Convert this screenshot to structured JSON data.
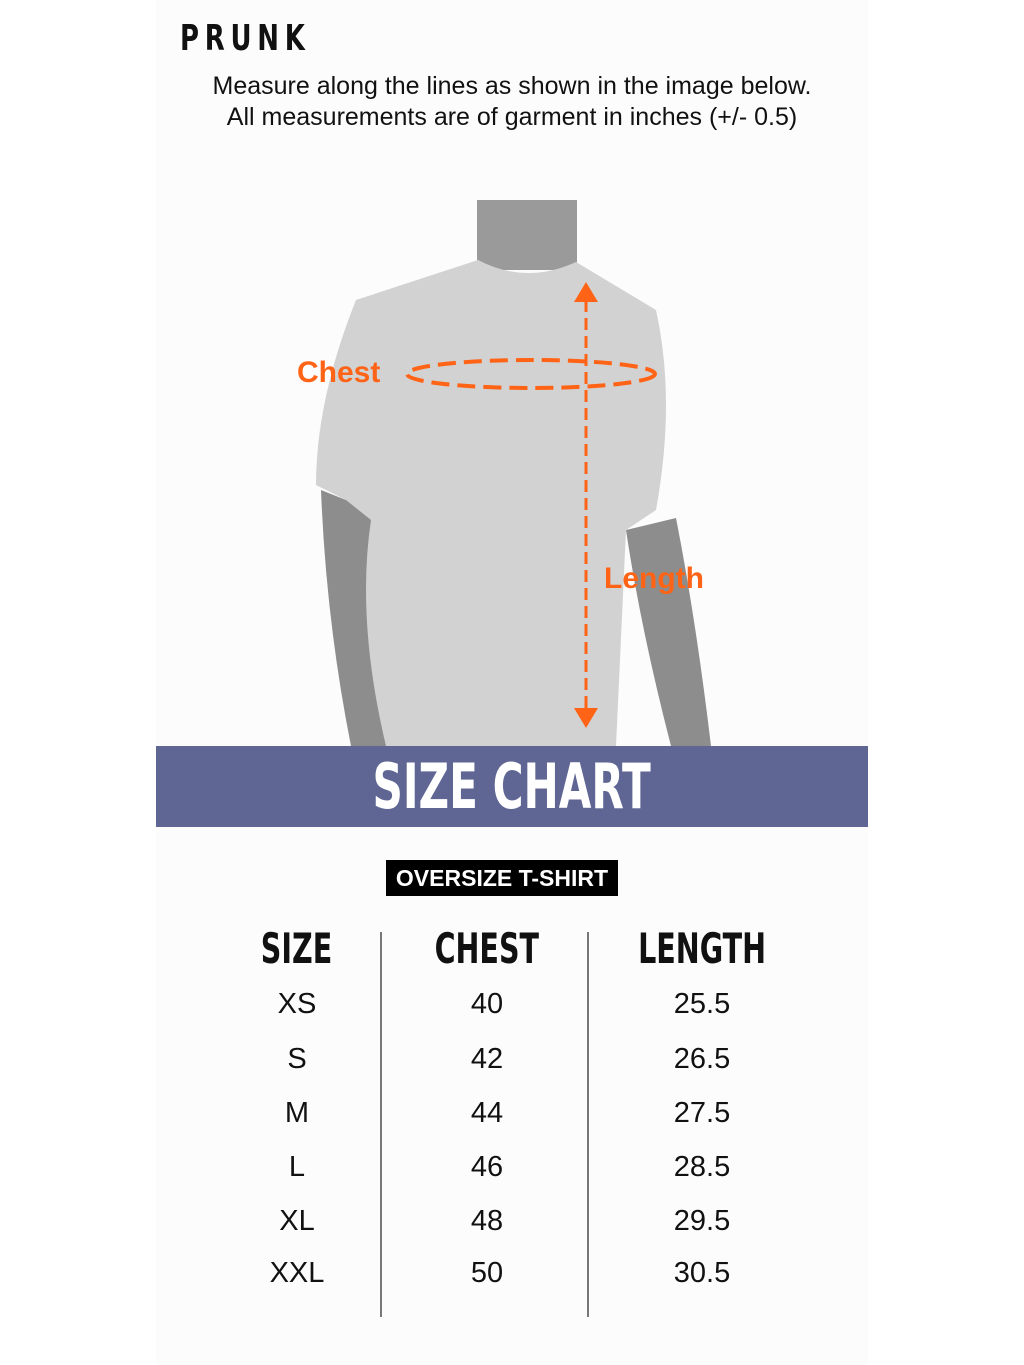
{
  "brand": "PRUNK",
  "instructions": {
    "line1": "Measure along the lines as shown in the image below.",
    "line2": "All measurements are of garment in inches  (+/- 0.5)"
  },
  "diagram": {
    "chest_label": "Chest",
    "length_label": "Length",
    "accent_color": "#ff6315"
  },
  "banner": {
    "title": "SIZE CHART",
    "color": "#5f6694"
  },
  "product_tag": "OVERSIZE T-SHIRT",
  "table": {
    "headers": [
      "SIZE",
      "CHEST",
      "LENGTH"
    ],
    "rows": [
      [
        "XS",
        "40",
        "25.5"
      ],
      [
        "S",
        "42",
        "26.5"
      ],
      [
        "M",
        "44",
        "27.5"
      ],
      [
        "L",
        "46",
        "28.5"
      ],
      [
        "XL",
        "48",
        "29.5"
      ],
      [
        "XXL",
        "50",
        "30.5"
      ]
    ]
  }
}
